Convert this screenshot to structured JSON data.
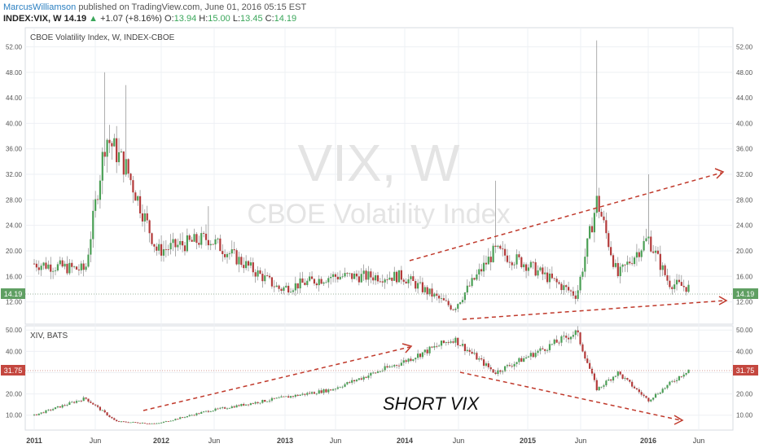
{
  "header": {
    "author": "MarcusWilliamson",
    "published": "published on TradingView.com, June 01, 2016 05:15 EST"
  },
  "quote": {
    "symbol": "INDEX:VIX, W",
    "price": "14.19",
    "arrow": "▲",
    "change": "+1.07 (+8.16%)",
    "open_label": "O:",
    "open": "13.94",
    "high_label": "H:",
    "high": "15.00",
    "low_label": "L:",
    "low": "13.45",
    "close_label": "C:",
    "close": "14.19"
  },
  "colors": {
    "up": "#4a9f55",
    "down": "#b33a3a",
    "trendline": "#c0392b",
    "last_price_badge": "#5f9f62",
    "xiv_badge": "#c4473f",
    "grid": "#eef0f4",
    "watermark": "#e4e4e4"
  },
  "top_panel": {
    "legend": "CBOE Volatility Index, W, INDEX-CBOE",
    "watermark_symbol": "VIX, W",
    "watermark_name": "CBOE Volatility Index",
    "price_badge": "14.19"
  },
  "bottom_panel": {
    "legend": "XIV, BATS",
    "price_badge": "31.75",
    "annotation": "SHORT VIX"
  },
  "chart_data": [
    {
      "type": "candlestick",
      "title": "CBOE Volatility Index, W, INDEX-CBOE",
      "interval": "weekly",
      "ylim": [
        8.5,
        55
      ],
      "y_ticks": [
        "52.00",
        "48.00",
        "44.00",
        "40.00",
        "36.00",
        "32.00",
        "28.00",
        "24.00",
        "20.00",
        "16.00",
        "12.00"
      ],
      "y_tick_values": [
        52,
        48,
        44,
        40,
        36,
        32,
        28,
        24,
        20,
        16,
        12
      ],
      "y_axis": "both sides",
      "grid": true,
      "last_value": 14.19,
      "key_points": [
        {
          "x": "2011-01",
          "close": 18
        },
        {
          "x": "2011-06",
          "close": 17
        },
        {
          "x": "2011-08",
          "close": 38,
          "high": 48
        },
        {
          "x": "2011-10",
          "close": 33,
          "high": 46
        },
        {
          "x": "2012-01",
          "close": 20
        },
        {
          "x": "2012-06",
          "close": 22,
          "high": 27
        },
        {
          "x": "2013-01",
          "close": 14
        },
        {
          "x": "2013-06",
          "close": 16
        },
        {
          "x": "2014-01",
          "close": 16
        },
        {
          "x": "2014-06",
          "close": 11
        },
        {
          "x": "2014-10",
          "close": 20,
          "high": 31
        },
        {
          "x": "2015-01",
          "close": 18
        },
        {
          "x": "2015-06",
          "close": 13
        },
        {
          "x": "2015-08",
          "close": 28,
          "high": 53
        },
        {
          "x": "2015-10",
          "close": 16
        },
        {
          "x": "2016-01",
          "close": 22,
          "high": 32
        },
        {
          "x": "2016-03",
          "close": 15
        },
        {
          "x": "2016-05",
          "close": 14.19
        }
      ]
    },
    {
      "type": "candlestick",
      "title": "XIV, BATS",
      "interval": "weekly",
      "ylim": [
        3,
        52
      ],
      "y_ticks": [
        "50.00",
        "40.00",
        "30.00",
        "20.00",
        "10.00"
      ],
      "y_tick_values": [
        50,
        40,
        30,
        20,
        10
      ],
      "y_axis": "both sides",
      "grid": true,
      "last_value": 31.75,
      "key_points": [
        {
          "x": "2011-01",
          "close": 10
        },
        {
          "x": "2011-06",
          "close": 18
        },
        {
          "x": "2011-09",
          "close": 7
        },
        {
          "x": "2012-01",
          "close": 6
        },
        {
          "x": "2012-06",
          "close": 12
        },
        {
          "x": "2013-01",
          "close": 18
        },
        {
          "x": "2013-06",
          "close": 22
        },
        {
          "x": "2014-01",
          "close": 35
        },
        {
          "x": "2014-06",
          "close": 46
        },
        {
          "x": "2014-10",
          "close": 30
        },
        {
          "x": "2015-01",
          "close": 37
        },
        {
          "x": "2015-06",
          "close": 49
        },
        {
          "x": "2015-08",
          "close": 22
        },
        {
          "x": "2015-10",
          "close": 30
        },
        {
          "x": "2016-01",
          "close": 17
        },
        {
          "x": "2016-05",
          "close": 31.75
        }
      ]
    }
  ],
  "x_axis": {
    "ticks": [
      "2011",
      "Jun",
      "2012",
      "Jun",
      "2013",
      "Jun",
      "2014",
      "Jun",
      "2015",
      "Jun",
      "2016",
      "Jun"
    ],
    "bold": [
      true,
      false,
      true,
      false,
      true,
      false,
      true,
      false,
      true,
      false,
      true,
      false
    ]
  }
}
